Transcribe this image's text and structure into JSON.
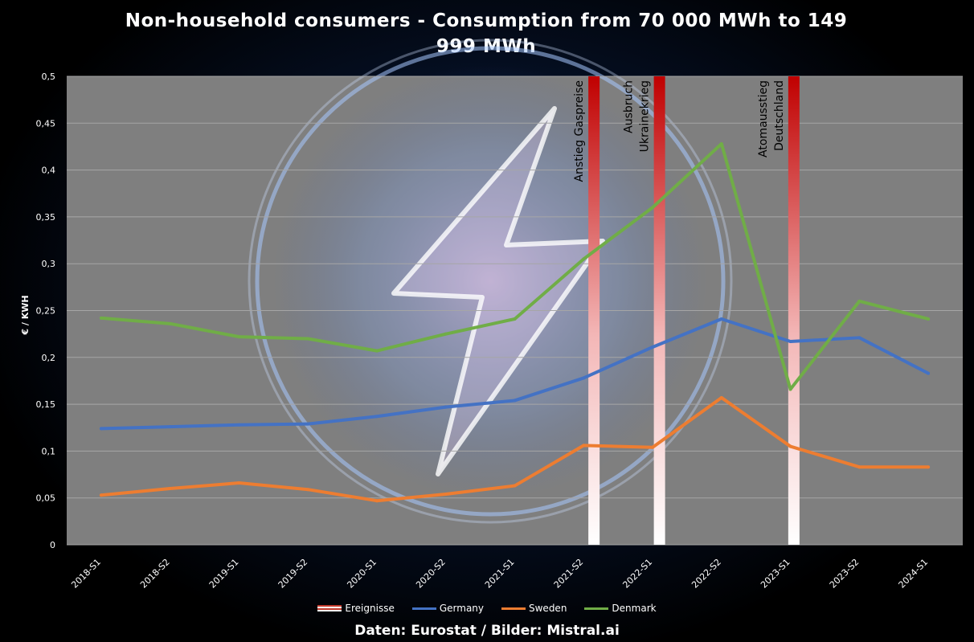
{
  "chart_data": {
    "type": "line",
    "title": "Non-household consumers - Consumption from 70 000 MWh to 149 999 MWh",
    "ylabel": "€ / KWH",
    "xlabel": "",
    "ylim": [
      0,
      0.5
    ],
    "yticks": [
      "0",
      "0,05",
      "0,1",
      "0,15",
      "0,2",
      "0,25",
      "0,3",
      "0,35",
      "0,4",
      "0,45",
      "0,5"
    ],
    "categories": [
      "2018-S1",
      "2018-S2",
      "2019-S1",
      "2019-S2",
      "2020-S1",
      "2020-S2",
      "2021-S1",
      "2021-S2",
      "2022-S1",
      "2022-S2",
      "2023-S1",
      "2023-S2",
      "2024-S1"
    ],
    "series": [
      {
        "name": "Germany",
        "color": "#4472c4",
        "values": [
          0.124,
          0.126,
          0.128,
          0.129,
          0.137,
          0.147,
          0.154,
          0.178,
          0.211,
          0.241,
          0.217,
          0.221,
          0.183
        ]
      },
      {
        "name": "Sweden",
        "color": "#ed7d31",
        "values": [
          0.053,
          0.06,
          0.066,
          0.059,
          0.047,
          0.054,
          0.063,
          0.106,
          0.104,
          0.157,
          0.105,
          0.083,
          0.083
        ]
      },
      {
        "name": "Denmark",
        "color": "#70ad47",
        "values": [
          0.242,
          0.236,
          0.222,
          0.22,
          0.207,
          0.225,
          0.241,
          0.305,
          0.36,
          0.428,
          0.166,
          0.26,
          0.241
        ]
      }
    ],
    "events": [
      {
        "name": "Ereignisse",
        "x": 7.15,
        "label": [
          "Anstieg Gaspreise"
        ]
      },
      {
        "x": 8.1,
        "label": [
          "Ausbruch",
          "Ukrainekrieg"
        ]
      },
      {
        "x": 10.05,
        "label": [
          "Atomausstieg",
          "Deutschland"
        ]
      }
    ],
    "legend": [
      "Ereignisse",
      "Germany",
      "Sweden",
      "Denmark"
    ],
    "legend_position": "bottom",
    "grid": true
  },
  "source": "Daten: Eurostat / Bilder: Mistral.ai"
}
